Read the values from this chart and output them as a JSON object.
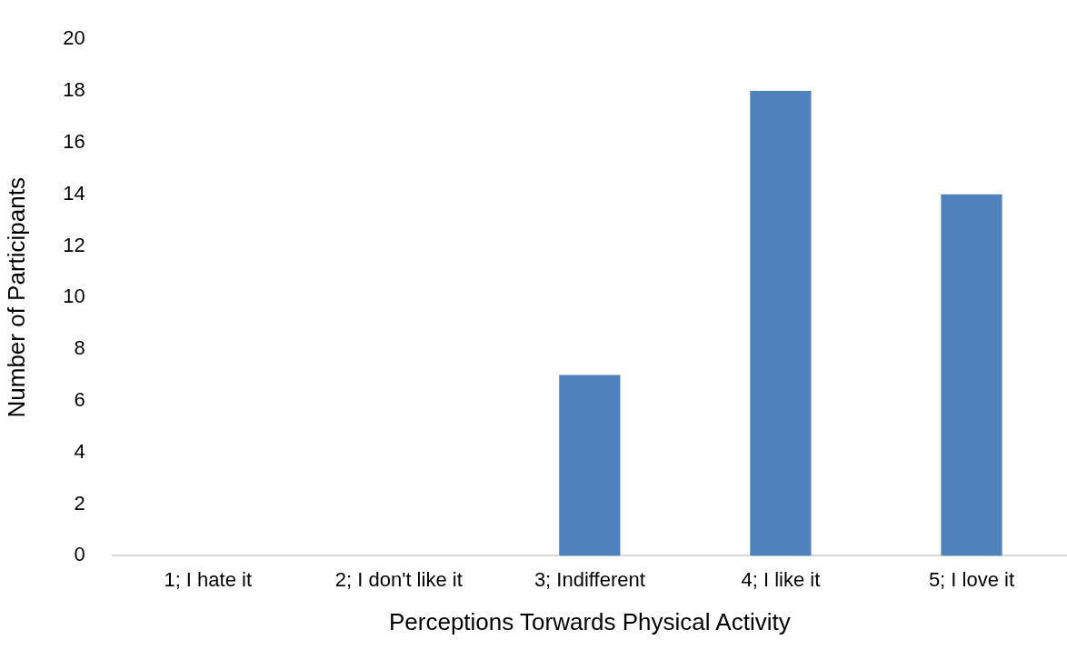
{
  "chart_data": {
    "type": "bar",
    "xlabel": "Perceptions Torwards Physical Activity",
    "ylabel": "Number of Participants",
    "categories": [
      "1; I hate it",
      "2; I don't like it",
      "3; Indifferent",
      "4; I like it",
      "5; I love it"
    ],
    "values": [
      0,
      0,
      7,
      18,
      14
    ],
    "color": "#4f81bd",
    "ylim": [
      0,
      20
    ],
    "yticks": [
      0,
      2,
      4,
      6,
      8,
      10,
      12,
      14,
      16,
      18,
      20
    ],
    "grid": false,
    "legend": false
  }
}
